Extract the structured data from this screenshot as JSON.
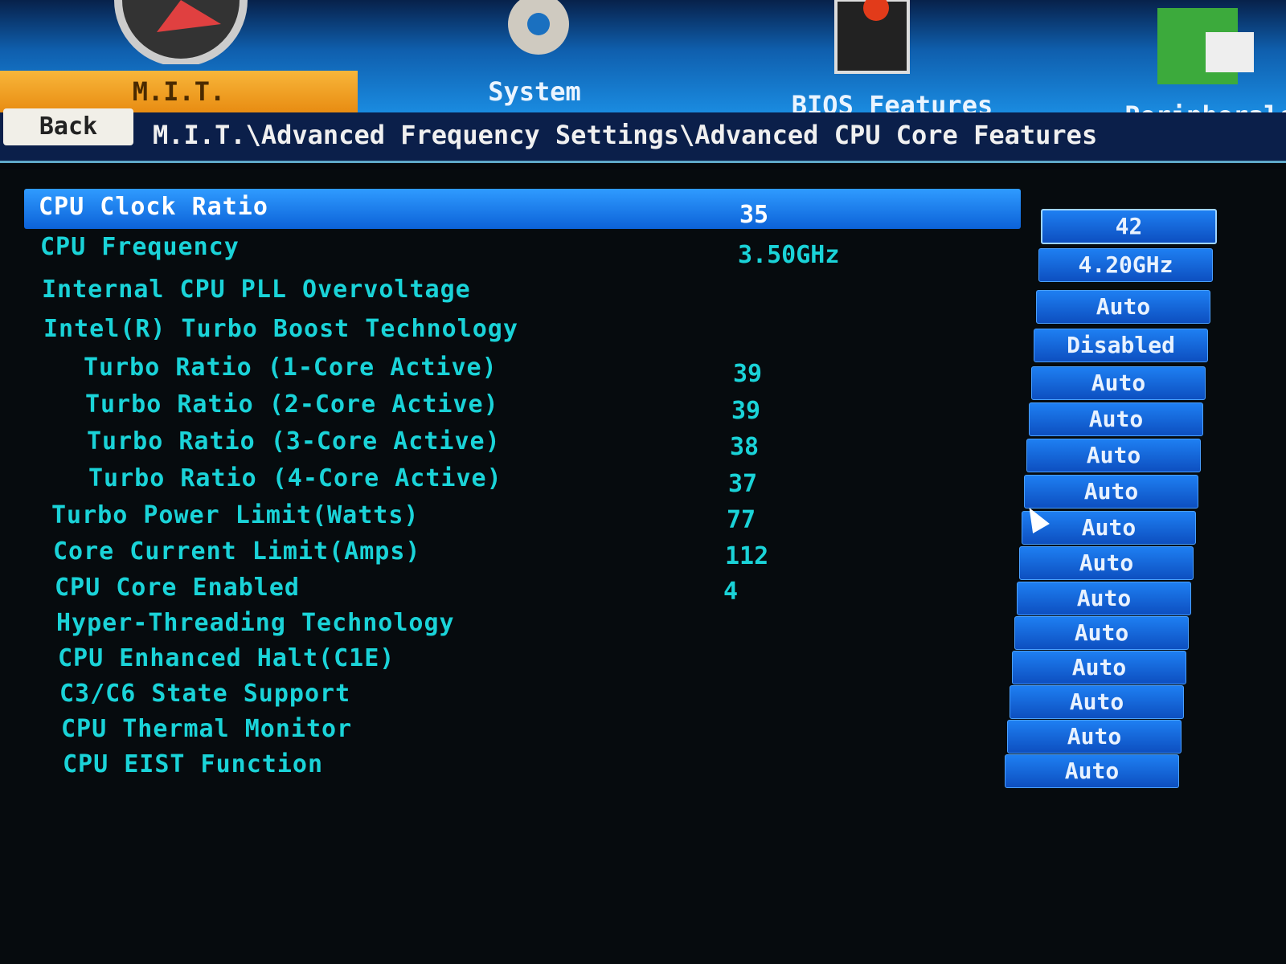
{
  "tabs": [
    {
      "label": "M.I.T.",
      "icon": "speedometer-icon",
      "active": true
    },
    {
      "label": "System",
      "icon": "gear-icon",
      "active": false
    },
    {
      "label": "BIOS Features",
      "icon": "chip-icon",
      "active": false
    },
    {
      "label": "Peripherals",
      "icon": "card-icon",
      "active": false
    }
  ],
  "back_label": "Back",
  "breadcrumb": "M.I.T.\\Advanced Frequency Settings\\Advanced CPU Core Features",
  "settings": [
    {
      "label": "CPU Clock Ratio",
      "current": "35",
      "value": "42",
      "selected": true
    },
    {
      "label": "CPU Frequency",
      "current": "3.50GHz",
      "value": "4.20GHz"
    },
    {
      "label": "Internal CPU PLL Overvoltage",
      "current": "",
      "value": "Auto"
    },
    {
      "label": "Intel(R) Turbo Boost Technology",
      "current": "",
      "value": "Disabled"
    },
    {
      "label": "Turbo Ratio (1-Core Active)",
      "current": "39",
      "value": "Auto",
      "indent": true
    },
    {
      "label": "Turbo Ratio (2-Core Active)",
      "current": "39",
      "value": "Auto",
      "indent": true
    },
    {
      "label": "Turbo Ratio (3-Core Active)",
      "current": "38",
      "value": "Auto",
      "indent": true
    },
    {
      "label": "Turbo Ratio (4-Core Active)",
      "current": "37",
      "value": "Auto",
      "indent": true
    },
    {
      "label": "Turbo Power Limit(Watts)",
      "current": "77",
      "value": "Auto"
    },
    {
      "label": "Core Current Limit(Amps)",
      "current": "112",
      "value": "Auto"
    },
    {
      "label": "CPU Core Enabled",
      "current": "4",
      "value": "Auto"
    },
    {
      "label": "Hyper-Threading Technology",
      "current": "",
      "value": "Auto"
    },
    {
      "label": "CPU Enhanced Halt(C1E)",
      "current": "",
      "value": "Auto"
    },
    {
      "label": "C3/C6 State Support",
      "current": "",
      "value": "Auto"
    },
    {
      "label": "CPU Thermal Monitor",
      "current": "",
      "value": "Auto"
    },
    {
      "label": "CPU EIST Function",
      "current": "",
      "value": "Auto"
    }
  ]
}
